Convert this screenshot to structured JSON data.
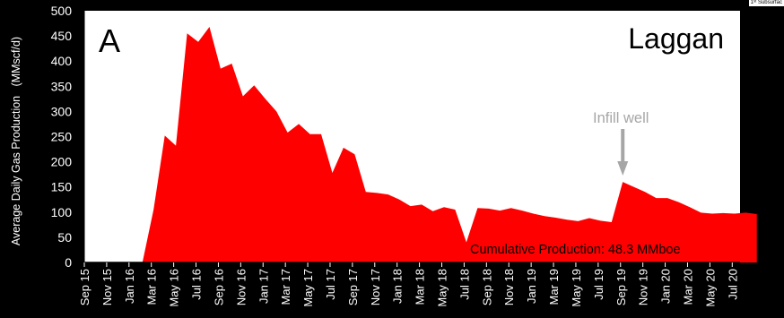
{
  "corner_note": "1ˢᵗ Subsurfac",
  "colors": {
    "background": "#000000",
    "plot_background": "#ffffff",
    "area_fill": "#ff0000",
    "annotation_gray": "#a6a6a6",
    "text": "#000000",
    "axis_text": "#ffffff"
  },
  "chart_data": {
    "type": "area",
    "panel_label": "A",
    "field_label": "Laggan",
    "ylabel": "Average Daily Gas Production   (MMscf/d)",
    "xlabel": "",
    "ylim": [
      0,
      500
    ],
    "yticks": [
      "0",
      "50",
      "100",
      "150",
      "200",
      "250",
      "300",
      "350",
      "400",
      "450",
      "500"
    ],
    "xticks": [
      "Sep 15",
      "Nov 15",
      "Jan 16",
      "Mar 16",
      "May 16",
      "Jul 16",
      "Sep 16",
      "Nov 16",
      "Jan 17",
      "Mar 17",
      "May 17",
      "Jul 17",
      "Sep 17",
      "Nov 17",
      "Jan 18",
      "Mar 18",
      "May 18",
      "Jul 18",
      "Sep 18",
      "Nov 18",
      "Jan 19",
      "Mar 19",
      "May 19",
      "Jul 19",
      "Sep 19",
      "Nov 19",
      "Jan 20",
      "Mar 20",
      "May 20",
      "Jul 20"
    ],
    "grid": false,
    "legend": "none",
    "series": [
      {
        "x": [
          0,
          2.6,
          3.1,
          3.6,
          4.1,
          4.6,
          5.1,
          5.6,
          6.1,
          6.6,
          7.1,
          7.6,
          8.1,
          8.6,
          9.1,
          9.6,
          10.1,
          10.6,
          11.1,
          11.6,
          12.1,
          12.6,
          13.1,
          13.6,
          14.1,
          14.6,
          15.1,
          15.6,
          16.1,
          16.6,
          17.1,
          17.6,
          18.1,
          18.6,
          19.1,
          19.6,
          20.1,
          20.6,
          21.1,
          21.6,
          22.1,
          22.6,
          23.1,
          23.6,
          24.1,
          24.6,
          25.1,
          25.6,
          26.1,
          26.6,
          27.1,
          27.6,
          28.1,
          28.6,
          29.1,
          29.6,
          30.1
        ],
        "values": [
          0,
          0,
          105,
          252,
          232,
          455,
          438,
          468,
          385,
          395,
          330,
          352,
          325,
          300,
          258,
          275,
          255,
          255,
          178,
          228,
          215,
          140,
          138,
          135,
          125,
          112,
          115,
          102,
          110,
          105,
          40,
          108,
          107,
          103,
          108,
          103,
          97,
          92,
          89,
          85,
          82,
          88,
          83,
          80,
          160,
          150,
          140,
          128,
          128,
          120,
          110,
          99,
          97,
          98,
          97,
          99,
          96
        ]
      }
    ],
    "annotations": [
      {
        "text": "Infill well",
        "x": 24.1,
        "arrow": true
      },
      {
        "text": "Cumulative Production: 48.3 MMboe"
      }
    ]
  }
}
